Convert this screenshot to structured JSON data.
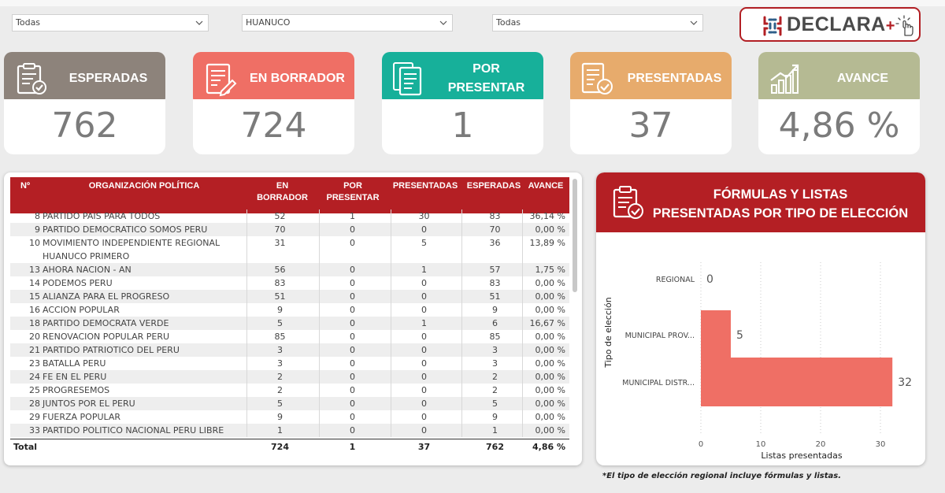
{
  "filters": [
    {
      "value": "Todas"
    },
    {
      "value": "HUANUCO"
    },
    {
      "value": "Todas"
    }
  ],
  "logo": {
    "text": "DECLARA",
    "plus": "+"
  },
  "cards": [
    {
      "label": "ESPERADAS",
      "value": "762",
      "color": "#8d837b"
    },
    {
      "label": "EN BORRADOR",
      "value": "724",
      "color": "#ef6f65"
    },
    {
      "label": "POR PRESENTAR",
      "value": "1",
      "color": "#17b09a"
    },
    {
      "label": "PRESENTADAS",
      "value": "37",
      "color": "#e7ab6c"
    },
    {
      "label": "AVANCE",
      "value": "4,86 %",
      "color": "#b5ba93"
    }
  ],
  "table": {
    "headers": {
      "no": "Nº",
      "org": "ORGANIZACIÓN POLÍTICA",
      "borrador": "EN BORRADOR",
      "por_presentar": "POR PRESENTAR",
      "presentadas": "PRESENTADAS",
      "esperadas": "ESPERADAS",
      "avance": "AVANCE"
    },
    "rows": [
      {
        "no": "8",
        "org": "PARTIDO PAIS PARA TODOS",
        "org2": "",
        "bor": "52",
        "por": "1",
        "pre": "30",
        "esp": "83",
        "ava": "36,14 %"
      },
      {
        "no": "9",
        "org": "PARTIDO DEMOCRATICO SOMOS PERU",
        "org2": "",
        "bor": "70",
        "por": "0",
        "pre": "0",
        "esp": "70",
        "ava": "0,00 %"
      },
      {
        "no": "10",
        "org": "MOVIMIENTO INDEPENDIENTE REGIONAL",
        "org2": "HUANUCO PRIMERO",
        "bor": "31",
        "por": "0",
        "pre": "5",
        "esp": "36",
        "ava": "13,89 %"
      },
      {
        "no": "13",
        "org": "AHORA NACION - AN",
        "org2": "",
        "bor": "56",
        "por": "0",
        "pre": "1",
        "esp": "57",
        "ava": "1,75 %"
      },
      {
        "no": "14",
        "org": "PODEMOS PERU",
        "org2": "",
        "bor": "83",
        "por": "0",
        "pre": "0",
        "esp": "83",
        "ava": "0,00 %"
      },
      {
        "no": "15",
        "org": "ALIANZA PARA EL PROGRESO",
        "org2": "",
        "bor": "51",
        "por": "0",
        "pre": "0",
        "esp": "51",
        "ava": "0,00 %"
      },
      {
        "no": "16",
        "org": "ACCION POPULAR",
        "org2": "",
        "bor": "9",
        "por": "0",
        "pre": "0",
        "esp": "9",
        "ava": "0,00 %"
      },
      {
        "no": "18",
        "org": "PARTIDO DEMOCRATA VERDE",
        "org2": "",
        "bor": "5",
        "por": "0",
        "pre": "1",
        "esp": "6",
        "ava": "16,67 %"
      },
      {
        "no": "20",
        "org": "RENOVACION POPULAR PERU",
        "org2": "",
        "bor": "85",
        "por": "0",
        "pre": "0",
        "esp": "85",
        "ava": "0,00 %"
      },
      {
        "no": "21",
        "org": "PARTIDO PATRIOTICO DEL PERU",
        "org2": "",
        "bor": "3",
        "por": "0",
        "pre": "0",
        "esp": "3",
        "ava": "0,00 %"
      },
      {
        "no": "23",
        "org": "BATALLA PERU",
        "org2": "",
        "bor": "3",
        "por": "0",
        "pre": "0",
        "esp": "3",
        "ava": "0,00 %"
      },
      {
        "no": "24",
        "org": "FE EN EL PERU",
        "org2": "",
        "bor": "2",
        "por": "0",
        "pre": "0",
        "esp": "2",
        "ava": "0,00 %"
      },
      {
        "no": "25",
        "org": "PROGRESEMOS",
        "org2": "",
        "bor": "2",
        "por": "0",
        "pre": "0",
        "esp": "2",
        "ava": "0,00 %"
      },
      {
        "no": "28",
        "org": "JUNTOS POR EL PERU",
        "org2": "",
        "bor": "5",
        "por": "0",
        "pre": "0",
        "esp": "5",
        "ava": "0,00 %"
      },
      {
        "no": "29",
        "org": "FUERZA POPULAR",
        "org2": "",
        "bor": "9",
        "por": "0",
        "pre": "0",
        "esp": "9",
        "ava": "0,00 %"
      },
      {
        "no": "33",
        "org": "PARTIDO POLITICO NACIONAL PERU LIBRE",
        "org2": "",
        "bor": "1",
        "por": "0",
        "pre": "0",
        "esp": "1",
        "ava": "0,00 %"
      }
    ],
    "total": {
      "label": "Total",
      "bor": "724",
      "por": "1",
      "pre": "37",
      "esp": "762",
      "ava": "4,86 %"
    }
  },
  "chart_panel": {
    "title_line1": "FÓRMULAS Y LISTAS",
    "title_line2": "PRESENTADAS POR TIPO DE ELECCIÓN"
  },
  "chart_data": {
    "type": "bar",
    "orientation": "horizontal",
    "categories": [
      "REGIONAL",
      "MUNICIPAL PROV...",
      "MUNICIPAL DISTR..."
    ],
    "values": [
      0,
      5,
      32
    ],
    "xlabel": "Listas presentadas",
    "ylabel": "Tipo de elección",
    "xlim": [
      0,
      35
    ],
    "xticks": [
      "0",
      "10",
      "20",
      "30"
    ],
    "bar_color": "#ef6f65",
    "grid": "vertical dotted"
  },
  "footnote": "*El tipo de elección regional incluye fórmulas y listas."
}
